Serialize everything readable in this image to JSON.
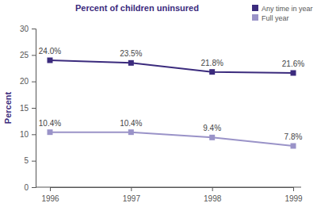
{
  "chart_data": {
    "type": "line",
    "title": "Percent of children uninsured",
    "y_label": "Percent",
    "categories": [
      "1996",
      "1997",
      "1998",
      "1999"
    ],
    "series": [
      {
        "name": "Any time in year",
        "color": "#3b2b7d",
        "marker": "square",
        "line_style": "solid",
        "values": [
          24.0,
          23.5,
          21.8,
          21.6
        ],
        "value_labels": [
          "24.0%",
          "23.5%",
          "21.8%",
          "21.6%"
        ]
      },
      {
        "name": "Full year",
        "color": "#9a93c8",
        "marker": "square",
        "line_style": "solid",
        "values": [
          10.4,
          10.4,
          9.4,
          7.8
        ],
        "value_labels": [
          "10.4%",
          "10.4%",
          "9.4%",
          "7.8%"
        ]
      }
    ],
    "ylim": [
      0,
      30
    ],
    "yticks": [
      0,
      5,
      10,
      15,
      20,
      25,
      30
    ],
    "grid": false,
    "legend": "top-right",
    "data_labels": true
  }
}
